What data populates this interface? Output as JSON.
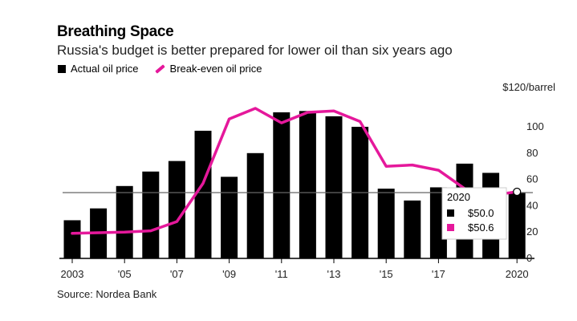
{
  "title": "Breathing Space",
  "subtitle": "Russia's budget is better prepared for lower oil than six years ago",
  "source": "Source: Nordea Bank",
  "legend": {
    "bar_label": "Actual oil price",
    "line_label": "Break-even oil price"
  },
  "colors": {
    "bar": "#000000",
    "line": "#e5189b",
    "axis": "#000000",
    "reference_line": "#666666"
  },
  "chart_data": {
    "type": "bar",
    "title": "Breathing Space",
    "subtitle": "Russia's budget is better prepared for lower oil than six years ago",
    "x": [
      2003,
      2004,
      2005,
      2006,
      2007,
      2008,
      2009,
      2010,
      2011,
      2012,
      2013,
      2014,
      2015,
      2016,
      2017,
      2018,
      2019,
      2020
    ],
    "x_tick_labels": [
      "2003",
      "'05",
      "'07",
      "'09",
      "'11",
      "'13",
      "'15",
      "'17",
      "2020"
    ],
    "x_tick_years": [
      2003,
      2005,
      2007,
      2009,
      2011,
      2013,
      2015,
      2017,
      2020
    ],
    "y_unit_label": "$120/barrel",
    "y_ticks": [
      0,
      20,
      40,
      60,
      80,
      100
    ],
    "ylim": [
      0,
      120
    ],
    "series": [
      {
        "name": "Actual oil price",
        "kind": "bar",
        "values": [
          29,
          38,
          55,
          66,
          74,
          97,
          62,
          80,
          111,
          112,
          108,
          100,
          53,
          44,
          54,
          72,
          65,
          50.0
        ]
      },
      {
        "name": "Break-even oil price",
        "kind": "line",
        "values": [
          19,
          19.5,
          20,
          21,
          28,
          57,
          106,
          114,
          103,
          111,
          112,
          104,
          70,
          71,
          67,
          53,
          48,
          50.6
        ]
      }
    ],
    "reference_value": 50,
    "tooltip": {
      "year": "2020",
      "bar_value": "$50.0",
      "line_value": "$50.6"
    }
  }
}
